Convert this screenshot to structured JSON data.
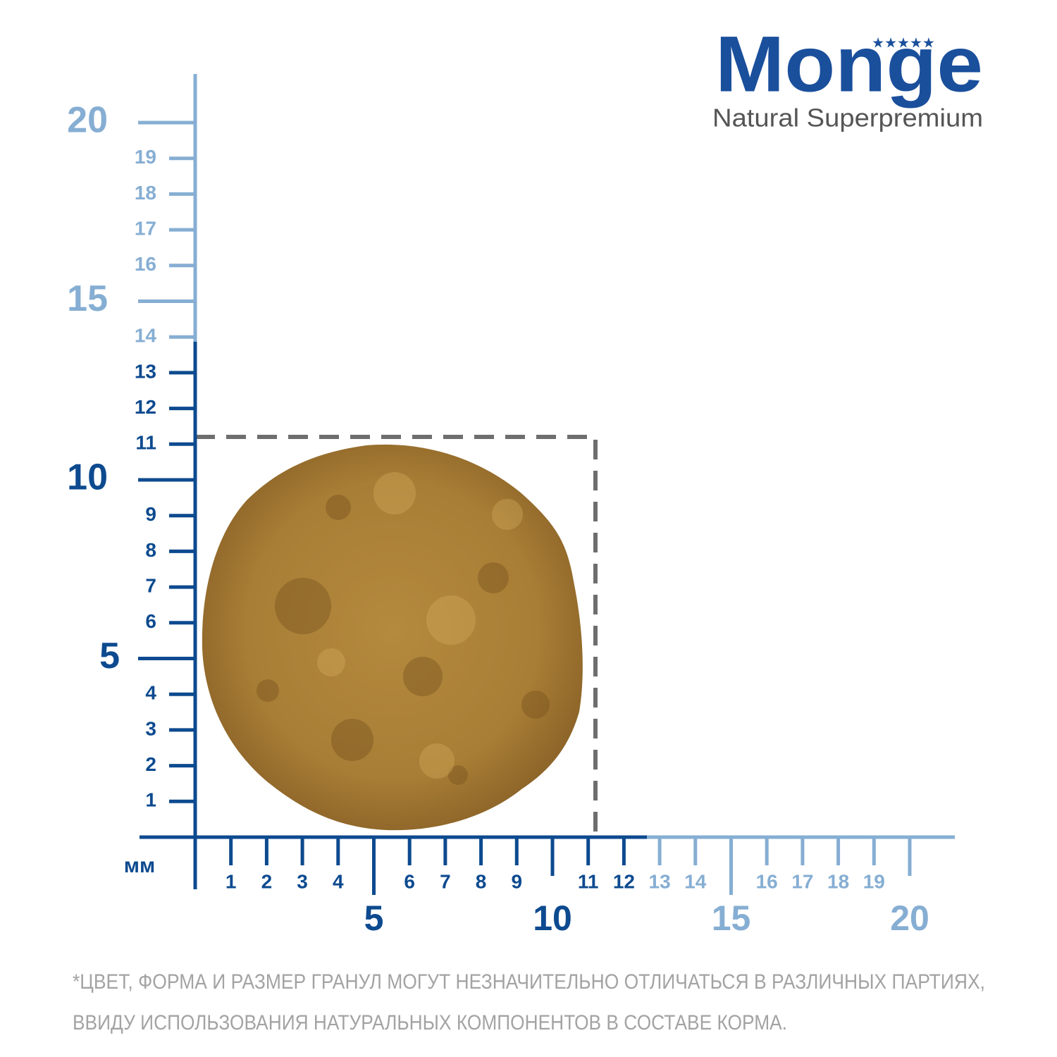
{
  "brand": {
    "name": "Monge",
    "tagline": "Natural Superpremium"
  },
  "unit": "мм",
  "y_axis": {
    "labels": [
      1,
      2,
      3,
      4,
      5,
      6,
      7,
      8,
      9,
      10,
      11,
      12,
      13,
      14,
      15,
      16,
      17,
      18,
      19,
      20
    ]
  },
  "x_axis": {
    "labels": [
      1,
      2,
      3,
      4,
      5,
      6,
      7,
      8,
      9,
      10,
      11,
      12,
      13,
      14,
      15,
      16,
      17,
      18,
      19,
      20
    ]
  },
  "footnote": [
    "*ЦВЕТ, ФОРМА И РАЗМЕР ГРАНУЛ МОГУТ НЕЗНАЧИТЕЛЬНО ОТЛИЧАТЬСЯ В РАЗЛИЧНЫХ ПАРТИЯХ,",
    "ВВИДУ ИСПОЛЬЗОВАНИЯ НАТУРАЛЬНЫХ КОМПОНЕНТОВ В СОСТАВЕ КОРМА."
  ]
}
